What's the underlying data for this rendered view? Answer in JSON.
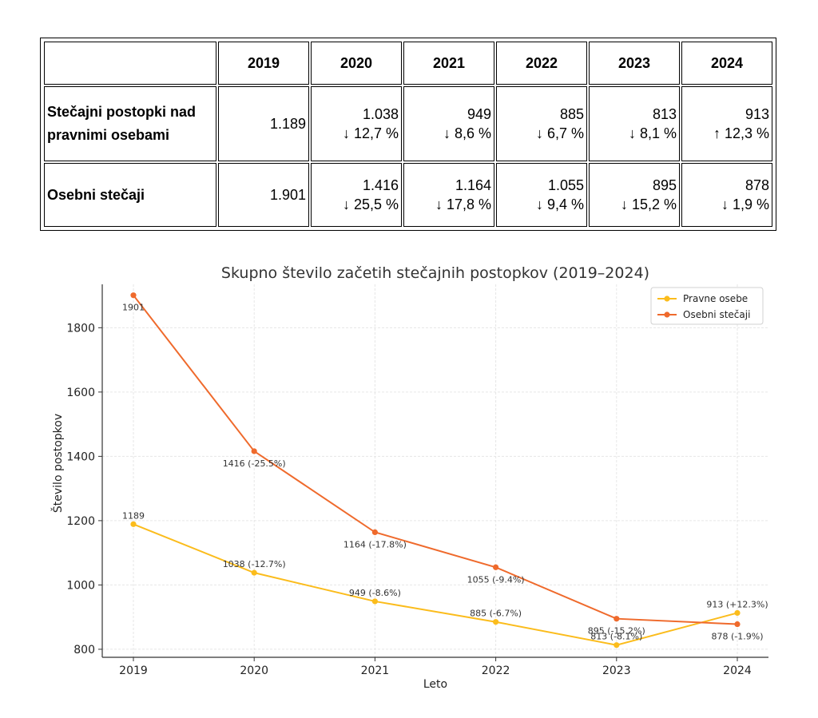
{
  "table": {
    "corner": "",
    "headers": [
      "2019",
      "2020",
      "2021",
      "2022",
      "2023",
      "2024"
    ],
    "rows": [
      {
        "label_line1": "Stečajni postopki nad",
        "label_line2": "pravnimi osebami",
        "cells": [
          {
            "value": "1.189",
            "change": ""
          },
          {
            "value": "1.038",
            "change": "↓ 12,7 %"
          },
          {
            "value": "949",
            "change": "↓ 8,6 %"
          },
          {
            "value": "885",
            "change": "↓ 6,7 %"
          },
          {
            "value": "813",
            "change": "↓ 8,1 %"
          },
          {
            "value": "913",
            "change": "↑ 12,3 %"
          }
        ]
      },
      {
        "label_line1": "Osebni stečaji",
        "label_line2": "",
        "cells": [
          {
            "value": "1.901",
            "change": ""
          },
          {
            "value": "1.416",
            "change": "↓ 25,5 %"
          },
          {
            "value": "1.164",
            "change": "↓ 17,8 %"
          },
          {
            "value": "1.055",
            "change": "↓ 9,4 %"
          },
          {
            "value": "895",
            "change": "↓ 15,2 %"
          },
          {
            "value": "878",
            "change": "↓ 1,9 %"
          }
        ]
      }
    ]
  },
  "chart_data": {
    "type": "line",
    "title": "Skupno število začetih stečajnih postopkov (2019–2024)",
    "xlabel": "Leto",
    "ylabel": "Število postopkov",
    "x": [
      2019,
      2020,
      2021,
      2022,
      2023,
      2024
    ],
    "xticks": [
      "2019",
      "2020",
      "2021",
      "2022",
      "2023",
      "2024"
    ],
    "yticks": [
      800,
      1000,
      1200,
      1400,
      1600,
      1800
    ],
    "ylim": [
      775,
      1935
    ],
    "grid": true,
    "legend_position": "top-right",
    "series": [
      {
        "name": "Pravne osebe",
        "color": "#fbbc1c",
        "values": [
          1189,
          1038,
          949,
          885,
          813,
          913
        ],
        "labels": [
          "1189",
          "1038 (-12.7%)",
          "949 (-8.6%)",
          "885 (-6.7%)",
          "813 (-8.1%)",
          "913 (+12.3%)"
        ]
      },
      {
        "name": "Osebni stečaji",
        "color": "#ef6a2c",
        "values": [
          1901,
          1416,
          1164,
          1055,
          895,
          878
        ],
        "labels": [
          "1901",
          "1416 (-25.5%)",
          "1164 (-17.8%)",
          "1055 (-9.4%)",
          "895 (-15.2%)",
          "878 (-1.9%)"
        ]
      }
    ]
  }
}
